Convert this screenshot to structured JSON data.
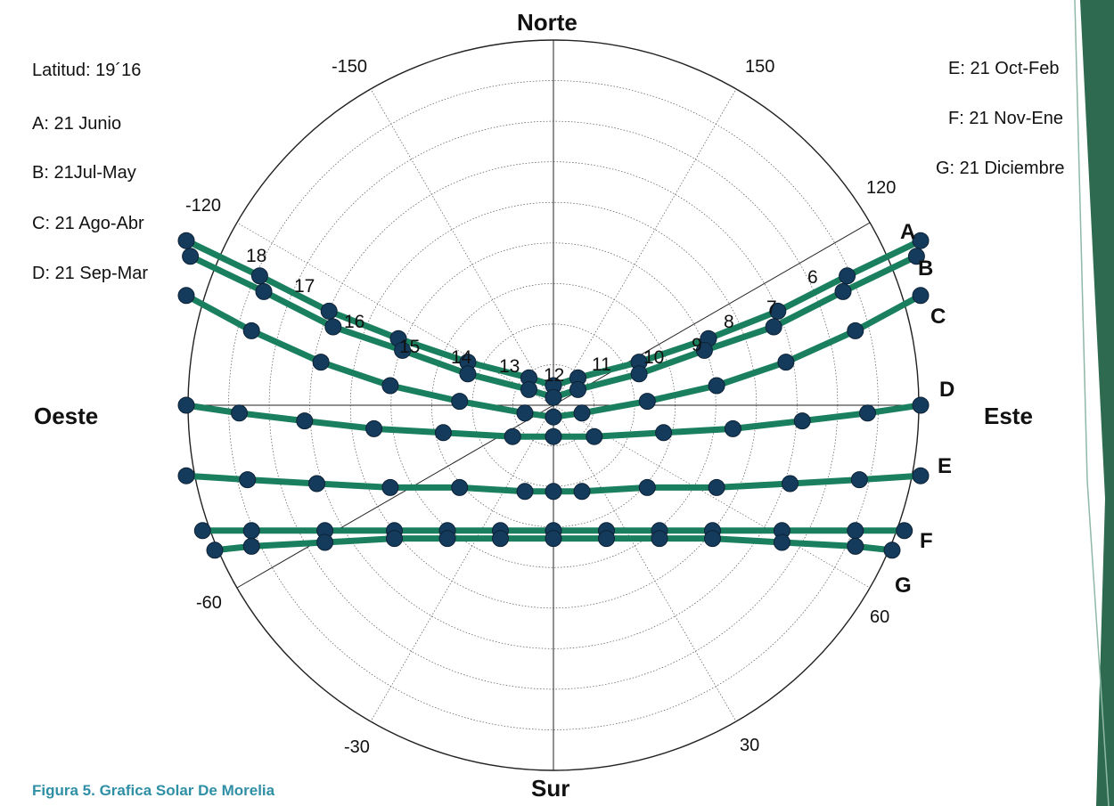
{
  "chart_data": {
    "type": "polar-sunpath",
    "title": "",
    "directions": {
      "north": "Norte",
      "south": "Sur",
      "east": "Este",
      "west": "Oeste"
    },
    "angle_labels": [
      "150",
      "-150",
      "120",
      "-120",
      "60",
      "-60",
      "30",
      "-30"
    ],
    "latitude_label": "Latitud: 19´16",
    "legend": [
      {
        "key": "A",
        "text": "A: 21 Junio"
      },
      {
        "key": "B",
        "text": "B: 21Jul-May"
      },
      {
        "key": "C",
        "text": "C: 21 Ago-Abr"
      },
      {
        "key": "D",
        "text": "D: 21 Sep-Mar"
      },
      {
        "key": "E",
        "text": "E: 21 Oct-Feb"
      },
      {
        "key": "F",
        "text": "F: 21 Nov-Ene"
      },
      {
        "key": "G",
        "text": "G: 21 Diciembre"
      }
    ],
    "hour_labels": [
      "18",
      "17",
      "16",
      "15",
      "14",
      "13",
      "12",
      "11",
      "10",
      "9",
      "8",
      "7",
      "6"
    ],
    "series": [
      {
        "name": "A",
        "hours": [
          6,
          7,
          8,
          9,
          10,
          11,
          12,
          13,
          14,
          15,
          16,
          17,
          18
        ],
        "x": [
          90,
          72,
          55,
          38,
          21,
          6,
          0,
          -6,
          -21,
          -38,
          -55,
          -72,
          -90
        ],
        "y": [
          -42,
          -33,
          -24,
          -17,
          -11,
          -7,
          -5,
          -7,
          -11,
          -17,
          -24,
          -33,
          -42
        ]
      },
      {
        "name": "B",
        "hours": [
          6,
          7,
          8,
          9,
          10,
          11,
          12,
          13,
          14,
          15,
          16,
          17,
          18
        ],
        "x": [
          89,
          71,
          54,
          37,
          21,
          6,
          0,
          -6,
          -21,
          -37,
          -54,
          -71,
          -89
        ],
        "y": [
          -38,
          -29,
          -20,
          -14,
          -8,
          -4,
          -2,
          -4,
          -8,
          -14,
          -20,
          -29,
          -38
        ]
      },
      {
        "name": "C",
        "hours": [
          6,
          7,
          8,
          9,
          10,
          11,
          12,
          13,
          14,
          15,
          16,
          17,
          18
        ],
        "x": [
          90,
          74,
          57,
          40,
          23,
          7,
          0,
          -7,
          -23,
          -40,
          -57,
          -74,
          -90
        ],
        "y": [
          -28,
          -19,
          -11,
          -5,
          -1,
          2,
          3,
          2,
          -1,
          -5,
          -11,
          -19,
          -28
        ]
      },
      {
        "name": "D",
        "hours": [
          6,
          7,
          8,
          9,
          10,
          11,
          12,
          13,
          14,
          15,
          16,
          17,
          18
        ],
        "x": [
          90,
          77,
          61,
          44,
          27,
          10,
          0,
          -10,
          -27,
          -44,
          -61,
          -77,
          -90
        ],
        "y": [
          0,
          2,
          4,
          6,
          7,
          8,
          8,
          8,
          7,
          6,
          4,
          2,
          0
        ]
      },
      {
        "name": "E",
        "hours": [
          6,
          7,
          8,
          9,
          10,
          11,
          12,
          13,
          14,
          15,
          16,
          17,
          18
        ],
        "x": [
          90,
          75,
          58,
          40,
          23,
          7,
          0,
          -7,
          -23,
          -40,
          -58,
          -75,
          -90
        ],
        "y": [
          18,
          19,
          20,
          21,
          21,
          22,
          22,
          22,
          21,
          21,
          20,
          19,
          18
        ]
      },
      {
        "name": "F",
        "hours": [
          6,
          7,
          8,
          9,
          10,
          11,
          12,
          13,
          14,
          15,
          16,
          17,
          18
        ],
        "x": [
          86,
          74,
          56,
          39,
          26,
          13,
          0,
          -13,
          -26,
          -39,
          -56,
          -74,
          -86
        ],
        "y": [
          32,
          32,
          32,
          32,
          32,
          32,
          32,
          32,
          32,
          32,
          32,
          32,
          32
        ]
      },
      {
        "name": "G",
        "hours": [
          6,
          7,
          8,
          9,
          10,
          11,
          12,
          13,
          14,
          15,
          16,
          17,
          18
        ],
        "x": [
          83,
          74,
          56,
          39,
          26,
          13,
          0,
          -13,
          -26,
          -39,
          -56,
          -74,
          -83
        ],
        "y": [
          37,
          36,
          35,
          34,
          34,
          34,
          34,
          34,
          34,
          34,
          35,
          36,
          37
        ]
      }
    ],
    "colors": {
      "curve": "#1a7f5e",
      "marker": "#153b5c",
      "grid": "#555555"
    },
    "caption": "Figura 5.  Grafica Solar De Morelia"
  }
}
